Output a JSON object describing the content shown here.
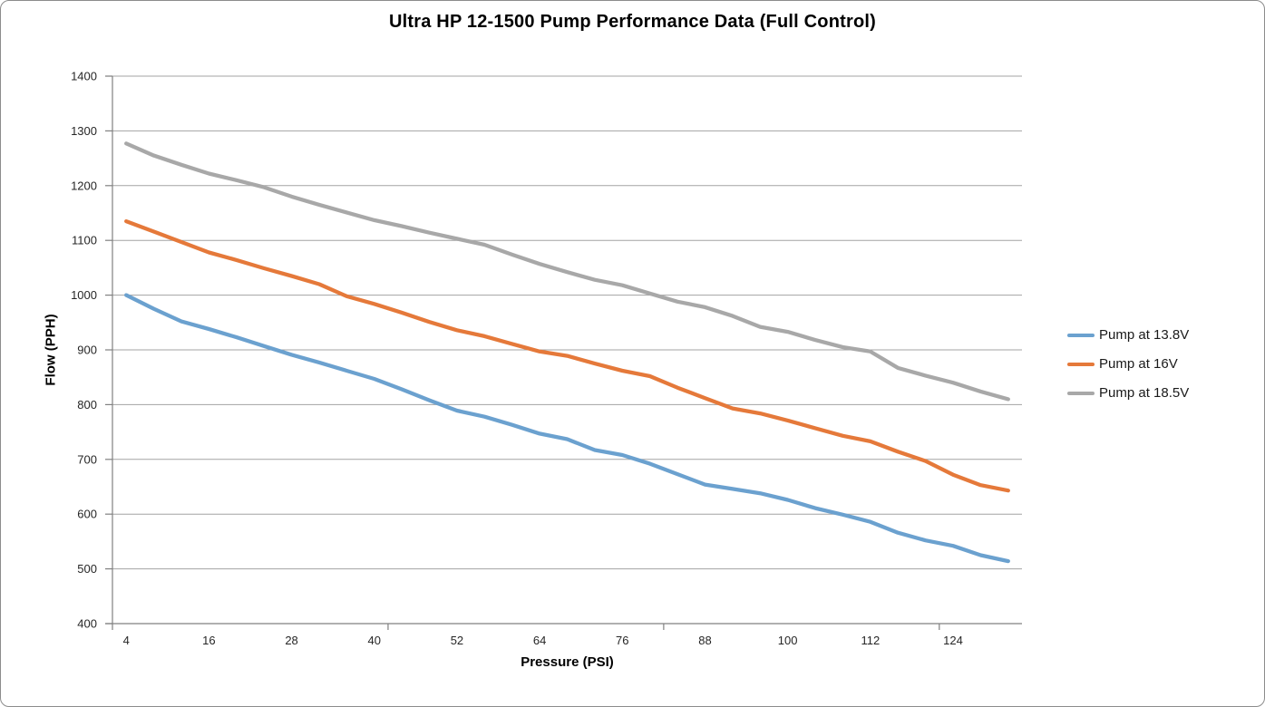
{
  "chart_data": {
    "type": "line",
    "title": "Ultra HP 12-1500 Pump Performance Data (Full Control)",
    "xlabel": "Pressure (PSI)",
    "ylabel": "Flow (PPH)",
    "x": [
      4,
      8,
      12,
      16,
      20,
      24,
      28,
      32,
      36,
      40,
      44,
      48,
      52,
      56,
      60,
      64,
      68,
      72,
      76,
      80,
      84,
      88,
      92,
      96,
      100,
      104,
      108,
      112,
      116,
      120,
      124,
      128,
      132
    ],
    "x_tick_labels": [
      "4",
      "16",
      "28",
      "40",
      "52",
      "64",
      "76",
      "88",
      "100",
      "112",
      "124"
    ],
    "y_tick_labels": [
      "400",
      "500",
      "600",
      "700",
      "800",
      "900",
      "1000",
      "1100",
      "1200",
      "1300",
      "1400"
    ],
    "y_ticks": [
      400,
      500,
      600,
      700,
      800,
      900,
      1000,
      1100,
      1200,
      1300,
      1400
    ],
    "ylim": [
      400,
      1400
    ],
    "grid": true,
    "legend_position": "right",
    "series": [
      {
        "name": "Pump at 13.8V",
        "color": "#6BA1CF",
        "values": [
          1000,
          975,
          952,
          938,
          923,
          907,
          891,
          877,
          862,
          847,
          828,
          808,
          789,
          778,
          763,
          747,
          737,
          717,
          708,
          692,
          673,
          654,
          646,
          638,
          626,
          611,
          599,
          586,
          566,
          552,
          542,
          525,
          514
        ]
      },
      {
        "name": "Pump at 16V",
        "color": "#E5793A",
        "values": [
          1135,
          1116,
          1097,
          1078,
          1064,
          1049,
          1035,
          1020,
          998,
          984,
          968,
          951,
          936,
          925,
          911,
          897,
          889,
          875,
          862,
          852,
          831,
          812,
          793,
          784,
          771,
          757,
          743,
          733,
          714,
          697,
          672,
          653,
          643
        ]
      },
      {
        "name": "Pump at 18.5V",
        "color": "#A8A8A8",
        "values": [
          1277,
          1255,
          1238,
          1222,
          1210,
          1197,
          1180,
          1165,
          1151,
          1137,
          1126,
          1114,
          1103,
          1092,
          1074,
          1057,
          1042,
          1028,
          1018,
          1003,
          988,
          978,
          962,
          942,
          933,
          918,
          905,
          897,
          867,
          853,
          840,
          824,
          810
        ]
      }
    ]
  },
  "style": {
    "gridline_color": "#a3a3a3",
    "axis_color": "#808080",
    "background": "#ffffff"
  }
}
